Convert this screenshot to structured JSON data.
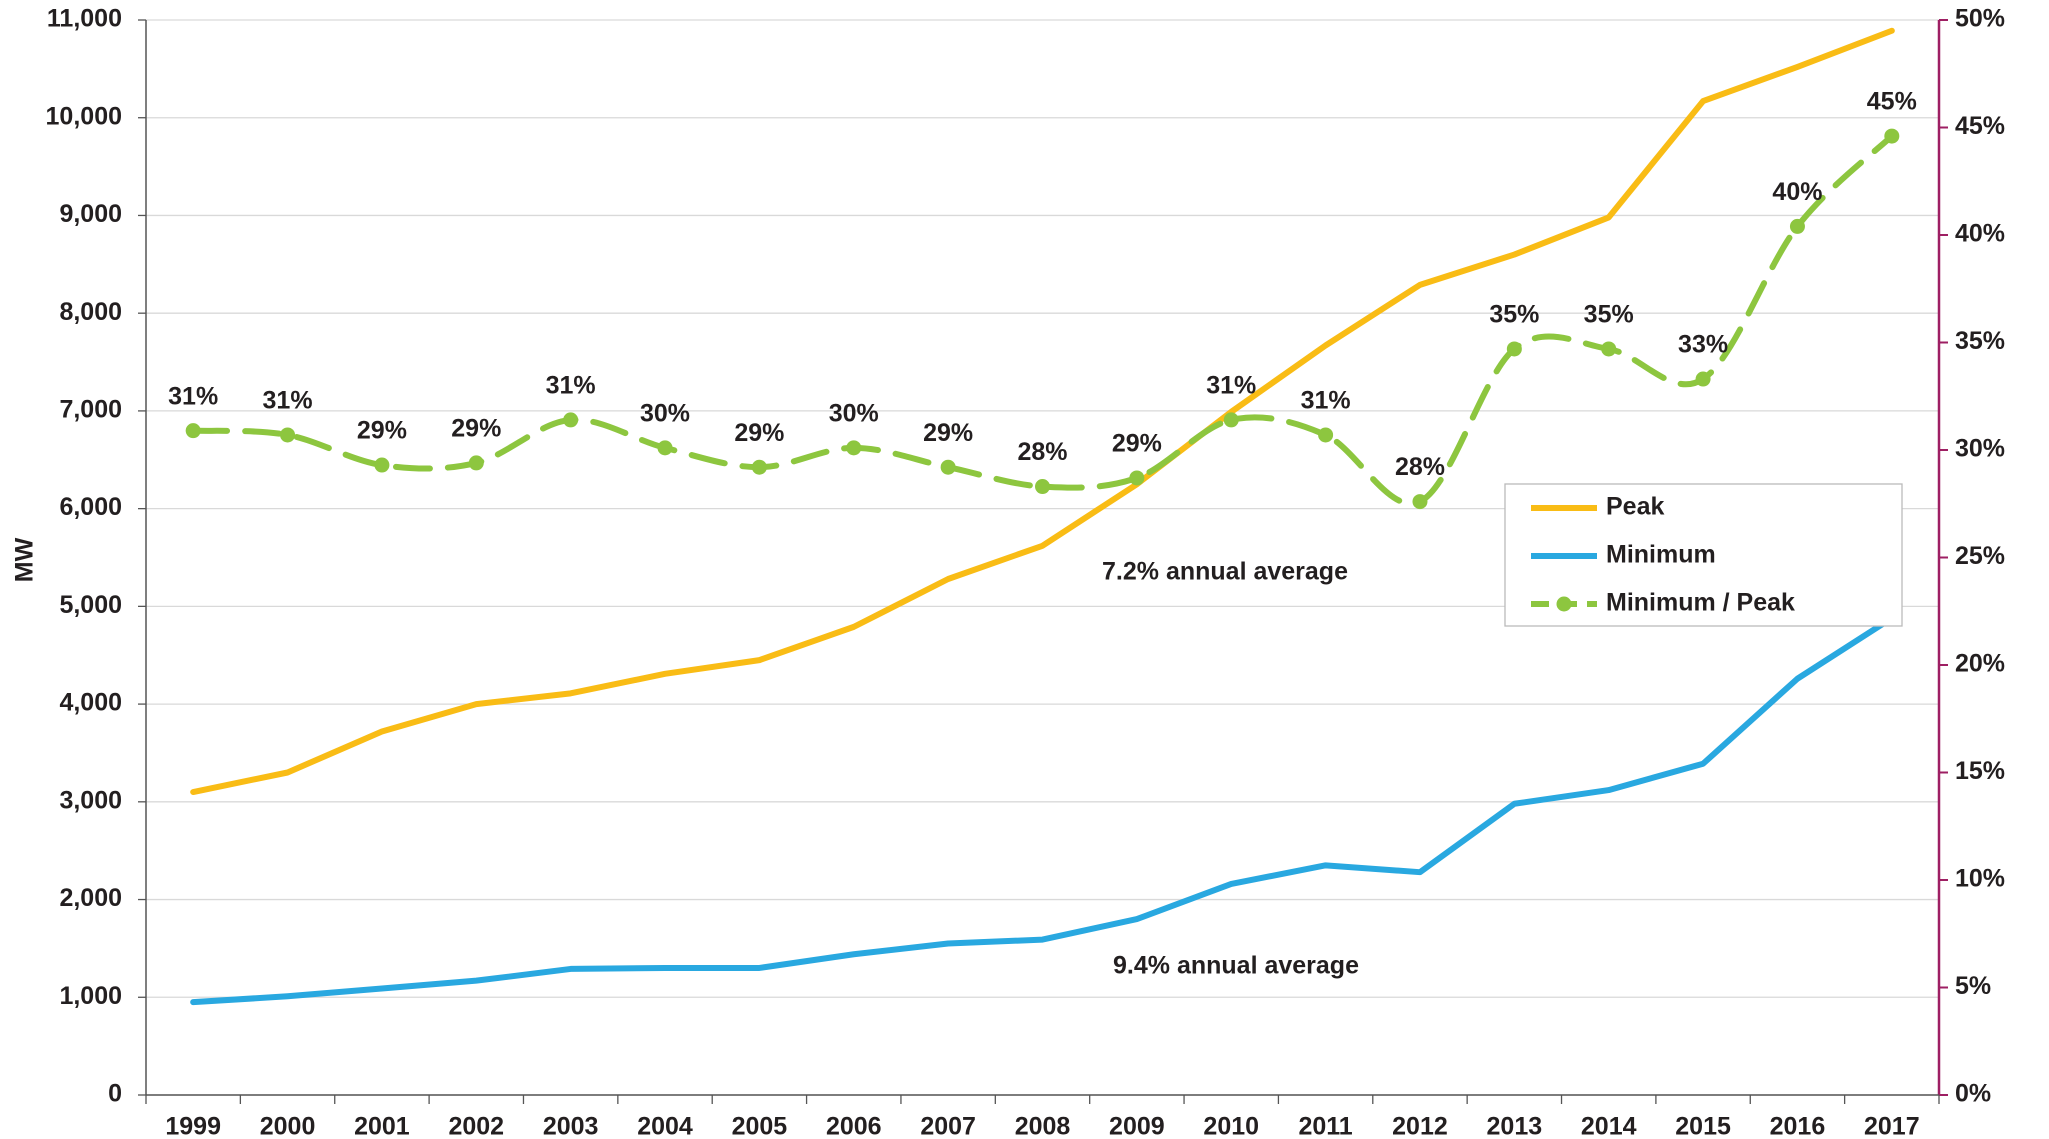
{
  "chart_data": {
    "type": "line",
    "y_label": "MW",
    "categories": [
      "1999",
      "2000",
      "2001",
      "2002",
      "2003",
      "2004",
      "2005",
      "2006",
      "2007",
      "2008",
      "2009",
      "2010",
      "2011",
      "2012",
      "2013",
      "2014",
      "2015",
      "2016",
      "2017"
    ],
    "series": [
      {
        "name": "Peak",
        "color": "#f9bc15",
        "values": [
          3100,
          3300,
          3720,
          4000,
          4110,
          4310,
          4450,
          4790,
          5280,
          5620,
          6250,
          6990,
          7670,
          8290,
          8600,
          8980,
          10170,
          10520,
          10890
        ]
      },
      {
        "name": "Minimum",
        "color": "#29a8e0",
        "values": [
          950,
          1010,
          1090,
          1170,
          1290,
          1300,
          1300,
          1440,
          1550,
          1590,
          1800,
          2160,
          2350,
          2280,
          2980,
          3120,
          3390,
          4260,
          4880
        ]
      },
      {
        "name": "Minimum / Peak",
        "color": "#8dc63f",
        "axis": "y2",
        "dashed": true,
        "markers": true,
        "values": [
          30.9,
          30.7,
          29.3,
          29.4,
          31.4,
          30.1,
          29.2,
          30.1,
          29.2,
          28.3,
          28.7,
          31.4,
          30.7,
          27.6,
          34.7,
          34.7,
          33.3,
          40.4,
          44.6
        ],
        "value_labels": [
          "31%",
          "31%",
          "29%",
          "29%",
          "31%",
          "30%",
          "29%",
          "30%",
          "29%",
          "28%",
          "29%",
          "31%",
          "31%",
          "28%",
          "35%",
          "35%",
          "33%",
          "40%",
          "45%"
        ]
      }
    ],
    "annotations": [
      {
        "text": "7.2% annual average",
        "color": "#f9bc15"
      },
      {
        "text": "9.4% annual average",
        "color": "#29a8e0"
      }
    ],
    "ylim": [
      0,
      11000
    ],
    "yticks": [
      0,
      {
        "value": 1000,
        "label": "1,000"
      },
      {
        "value": 2000,
        "label": "2,000"
      },
      {
        "value": 3000,
        "label": "3,000"
      },
      {
        "value": 4000,
        "label": "4,000"
      },
      {
        "value": 5000,
        "label": "5,000"
      },
      {
        "value": 6000,
        "label": "6,000"
      },
      {
        "value": 7000,
        "label": "7,000"
      },
      {
        "value": 8000,
        "label": "8,000"
      },
      {
        "value": 9000,
        "label": "9,000"
      },
      {
        "value": 10000,
        "label": "10,000"
      },
      {
        "value": 11000,
        "label": "11,000"
      }
    ],
    "y2lim": [
      0,
      50
    ],
    "y2ticks": [
      {
        "value": 0,
        "label": "0%"
      },
      {
        "value": 5,
        "label": "5%"
      },
      {
        "value": 10,
        "label": "10%"
      },
      {
        "value": 15,
        "label": "15%"
      },
      {
        "value": 20,
        "label": "20%"
      },
      {
        "value": 25,
        "label": "25%"
      },
      {
        "value": 30,
        "label": "30%"
      },
      {
        "value": 35,
        "label": "35%"
      },
      {
        "value": 40,
        "label": "40%"
      },
      {
        "value": 45,
        "label": "45%"
      },
      {
        "value": 50,
        "label": "50%"
      }
    ],
    "y2_color": "#9e1f63",
    "grid": true,
    "legend": "right"
  }
}
